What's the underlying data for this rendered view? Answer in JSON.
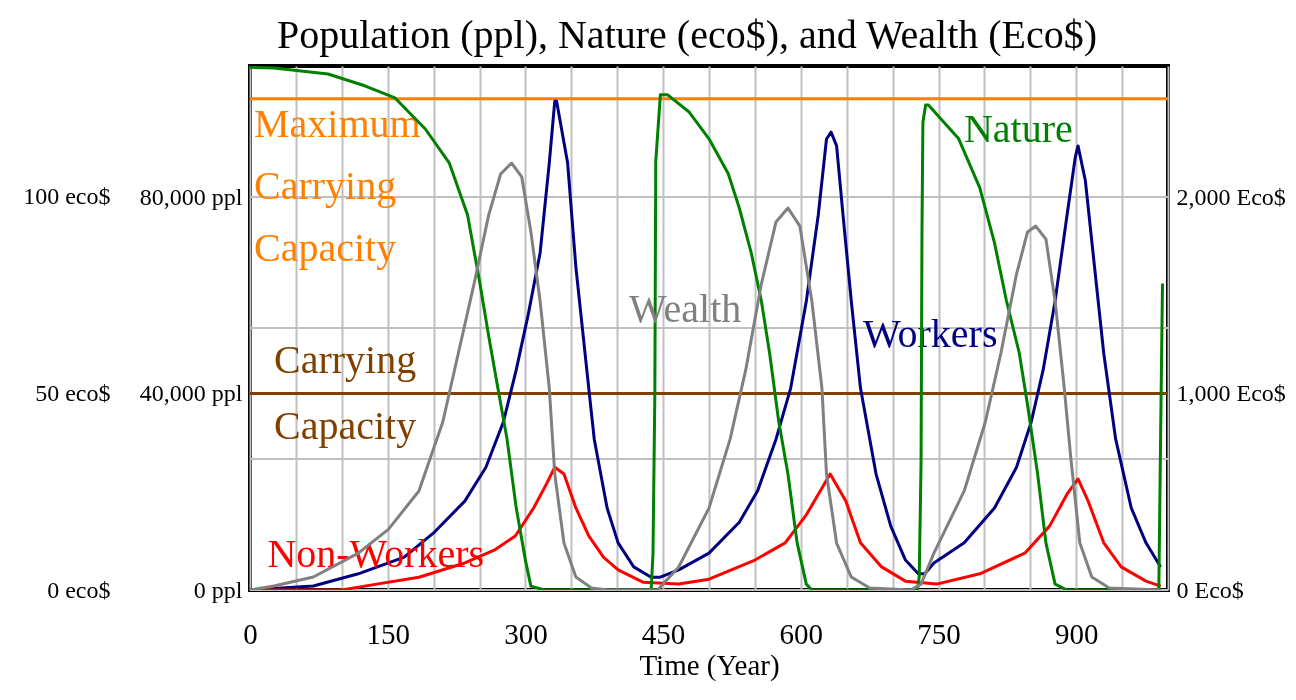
{
  "chart_data": {
    "type": "line",
    "title": "Population (ppl), Nature (eco$), and Wealth (Eco$)",
    "xlabel": "Time (Year)",
    "xlim": [
      0,
      1000
    ],
    "xticks": [
      0,
      {
        "value": 50,
        "label": null
      },
      {
        "value": 100,
        "label": null
      },
      150,
      {
        "value": 200,
        "label": null
      },
      {
        "value": 250,
        "label": null
      },
      300,
      {
        "value": 350,
        "label": null
      },
      {
        "value": 400,
        "label": null
      },
      450,
      {
        "value": 500,
        "label": null
      },
      {
        "value": 550,
        "label": null
      },
      600,
      {
        "value": 650,
        "label": null
      },
      {
        "value": 700,
        "label": null
      },
      750,
      {
        "value": 800,
        "label": null
      },
      {
        "value": 850,
        "label": null
      },
      900,
      {
        "value": 950,
        "label": null
      },
      {
        "value": 1000,
        "label": null
      }
    ],
    "ylim": [
      0,
      106667
    ],
    "yticks": [
      {
        "value": 0,
        "label": "0 ppl"
      },
      {
        "value": 26667,
        "label": null
      },
      {
        "value": 40000,
        "label": "40,000 ppl"
      },
      {
        "value": 53333,
        "label": null
      },
      {
        "value": 80000,
        "label": "80,000 ppl"
      }
    ],
    "y2lim": [
      0,
      133.33
    ],
    "y2ticks": [
      {
        "value": 0,
        "label": "0 eco$"
      },
      {
        "value": 50,
        "label": "50 eco$"
      },
      {
        "value": 100,
        "label": "100 eco$"
      }
    ],
    "y3lim": [
      0,
      2666.7
    ],
    "y3ticks": [
      {
        "value": 0,
        "label": "0 Eco$"
      },
      {
        "value": 1000,
        "label": "1,000 Eco$"
      },
      {
        "value": 2000,
        "label": "2,000 Eco$"
      }
    ],
    "grid": true,
    "ref_lines": [
      {
        "axis": "y",
        "value": 100000,
        "label": "Maximum Carrying Capacity",
        "color": "#ff8000"
      },
      {
        "axis": "y",
        "value": 40000,
        "label": "Carrying Capacity",
        "color": "#804000"
      }
    ],
    "series": [
      {
        "name": "Workers",
        "color": "#000080",
        "axis": "y",
        "x": [
          0,
          69,
          118,
          168,
          201,
          234,
          257,
          276,
          290,
          303,
          316,
          326,
          332,
          334,
          346,
          355,
          369,
          375,
          389,
          401,
          418,
          437,
          447,
          467,
          500,
          533,
          553,
          573,
          589,
          606,
          619,
          628,
          633,
          639,
          646,
          655,
          665,
          682,
          698,
          714,
          728,
          735,
          745,
          778,
          811,
          835,
          851,
          864,
          877,
          890,
          899,
          902,
          910,
          920,
          930,
          943,
          960,
          976,
          992
        ],
        "values": [
          0,
          800,
          3300,
          6700,
          11800,
          18100,
          25000,
          34200,
          44800,
          56000,
          68600,
          86900,
          99500,
          99500,
          86900,
          65700,
          41100,
          30700,
          16700,
          9600,
          4700,
          2600,
          2600,
          4100,
          7500,
          13800,
          20200,
          30700,
          41100,
          58800,
          76300,
          91800,
          93200,
          90400,
          76300,
          58800,
          41100,
          23600,
          13000,
          6100,
          3300,
          3300,
          5500,
          9600,
          16700,
          25000,
          34200,
          44800,
          58800,
          76300,
          88100,
          90400,
          83300,
          65700,
          48200,
          30700,
          16700,
          9600,
          4700
        ]
      },
      {
        "name": "Non-Workers",
        "color": "#ff0000",
        "axis": "y",
        "x": [
          0,
          100,
          138,
          184,
          234,
          266,
          289,
          309,
          323,
          332,
          342,
          355,
          369,
          385,
          401,
          428,
          467,
          500,
          550,
          583,
          606,
          632,
          649,
          665,
          688,
          714,
          748,
          795,
          844,
          871,
          890,
          902,
          913,
          930,
          949,
          976,
          992
        ],
        "values": [
          0,
          0,
          1200,
          2600,
          5500,
          8100,
          11000,
          16700,
          21600,
          25000,
          23600,
          16700,
          11000,
          6700,
          4100,
          1600,
          1200,
          2200,
          6100,
          9600,
          15300,
          23600,
          18100,
          9600,
          4700,
          1800,
          1200,
          3300,
          7500,
          13000,
          19500,
          22600,
          18100,
          9600,
          4700,
          1800,
          800
        ]
      },
      {
        "name": "Nature",
        "color": "#008000",
        "axis": "y2",
        "x": [
          0,
          26,
          85,
          125,
          158,
          191,
          217,
          237,
          250,
          260,
          270,
          280,
          290,
          300,
          306,
          321,
          437,
          439,
          441,
          442,
          447,
          455,
          478,
          500,
          521,
          533,
          546,
          557,
          566,
          576,
          586,
          596,
          606,
          612,
          727,
          729,
          731,
          732,
          733,
          736,
          739,
          772,
          795,
          811,
          824,
          838,
          847,
          858,
          867,
          877,
          890,
          990,
          992,
          994
        ],
        "values": [
          133,
          132.8,
          131.3,
          128.3,
          125.2,
          117.3,
          108.7,
          95.4,
          78.6,
          64.6,
          51.4,
          38.4,
          20.9,
          7.6,
          1,
          0,
          0,
          9.4,
          50,
          109,
          126,
          126,
          121.7,
          114.8,
          105.9,
          97.2,
          85.8,
          73.6,
          60.3,
          42.8,
          29.5,
          12,
          1.5,
          0,
          0,
          3.3,
          32.3,
          91.1,
          119,
          123.4,
          123.4,
          114.8,
          102.3,
          88.3,
          73.6,
          60.3,
          47.1,
          29.5,
          12,
          1.5,
          0,
          0,
          40,
          78
        ]
      },
      {
        "name": "Wealth",
        "color": "#808080",
        "axis": "y3",
        "x": [
          0,
          26,
          69,
          118,
          151,
          184,
          210,
          227,
          244,
          260,
          273,
          285,
          296,
          306,
          316,
          326,
          332,
          342,
          355,
          372,
          390,
          444,
          467,
          500,
          523,
          540,
          557,
          573,
          586,
          599,
          612,
          623,
          628,
          639,
          655,
          675,
          720,
          731,
          745,
          778,
          801,
          818,
          835,
          847,
          856,
          867,
          877,
          887,
          894,
          904,
          917,
          936,
          992
        ],
        "values": [
          0,
          20,
          66,
          188,
          310,
          504,
          855,
          1206,
          1557,
          1908,
          2117,
          2173,
          2102,
          1822,
          1471,
          1028,
          590,
          239,
          66,
          10,
          0,
          0,
          117,
          417,
          768,
          1120,
          1557,
          1873,
          1944,
          1852,
          1471,
          1028,
          590,
          239,
          66,
          10,
          0,
          30,
          188,
          504,
          855,
          1206,
          1608,
          1822,
          1852,
          1786,
          1471,
          1028,
          677,
          239,
          66,
          10,
          0
        ]
      }
    ]
  }
}
